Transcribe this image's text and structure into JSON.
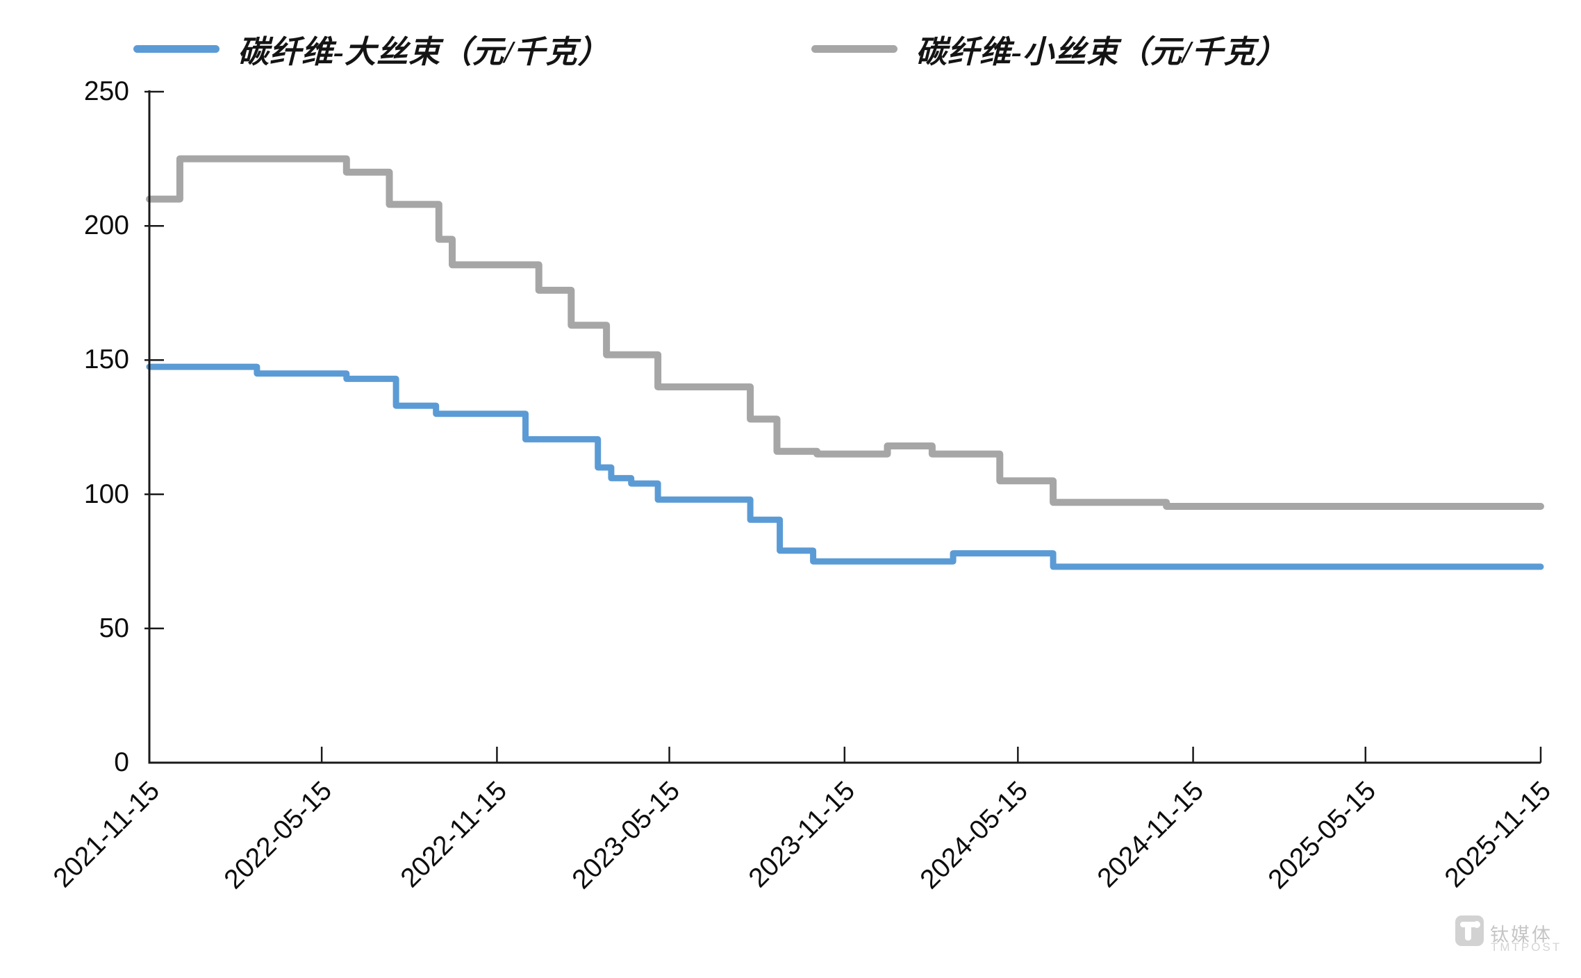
{
  "legend": [
    {
      "label": "碳纤维-大丝束（元/千克）",
      "color": "#5B9BD5"
    },
    {
      "label": "碳纤维-小丝束（元/千克）",
      "color": "#A6A6A6"
    }
  ],
  "watermark": {
    "name_cn": "钛媒体",
    "name_en": "TMTPOST"
  },
  "colors": {
    "axis": "#1a1a1a",
    "background": "#ffffff"
  },
  "chart_data": {
    "type": "line",
    "subtype": "step",
    "title": "",
    "xlabel": "",
    "ylabel": "",
    "grid": false,
    "legend_position": "top",
    "x_axis": {
      "start": "2021-11-15",
      "end": "2025-11-15",
      "tick_interval": "6 months",
      "tick_labels": [
        "2021-11-15",
        "2022-05-15",
        "2022-11-15",
        "2023-05-15",
        "2023-11-15",
        "2024-05-15",
        "2024-11-15",
        "2025-05-15",
        "2025-11-15"
      ]
    },
    "y_axis": {
      "min": 0,
      "max": 250,
      "tick_step": 50,
      "tick_labels": [
        "0",
        "50",
        "100",
        "150",
        "200",
        "250"
      ]
    },
    "series": [
      {
        "name": "碳纤维-大丝束（元/千克）",
        "color": "#5B9BD5",
        "stroke_width": 9,
        "steps": [
          [
            "2021-11-15",
            147.5
          ],
          [
            "2022-03-08",
            145
          ],
          [
            "2022-06-10",
            143
          ],
          [
            "2022-08-01",
            133
          ],
          [
            "2022-09-12",
            130
          ],
          [
            "2022-12-15",
            120.5
          ],
          [
            "2023-03-01",
            110
          ],
          [
            "2023-03-15",
            106
          ],
          [
            "2023-04-05",
            104
          ],
          [
            "2023-05-03",
            98
          ],
          [
            "2023-08-08",
            90.5
          ],
          [
            "2023-09-08",
            79
          ],
          [
            "2023-10-13",
            75
          ],
          [
            "2024-03-08",
            78
          ],
          [
            "2024-06-21",
            73
          ]
        ]
      },
      {
        "name": "碳纤维-小丝束（元/千克）",
        "color": "#A6A6A6",
        "stroke_width": 10,
        "steps": [
          [
            "2021-11-15",
            210
          ],
          [
            "2021-12-17",
            225
          ],
          [
            "2022-06-10",
            220
          ],
          [
            "2022-07-25",
            208
          ],
          [
            "2022-09-15",
            195
          ],
          [
            "2022-09-29",
            185.5
          ],
          [
            "2022-12-29",
            176
          ],
          [
            "2023-02-01",
            163
          ],
          [
            "2023-03-10",
            152
          ],
          [
            "2023-05-03",
            140
          ],
          [
            "2023-08-08",
            128
          ],
          [
            "2023-09-05",
            116
          ],
          [
            "2023-10-17",
            115
          ],
          [
            "2023-12-30",
            118
          ],
          [
            "2024-02-15",
            115
          ],
          [
            "2024-04-26",
            105
          ],
          [
            "2024-06-21",
            97
          ],
          [
            "2024-10-18",
            95.5
          ]
        ]
      }
    ]
  }
}
